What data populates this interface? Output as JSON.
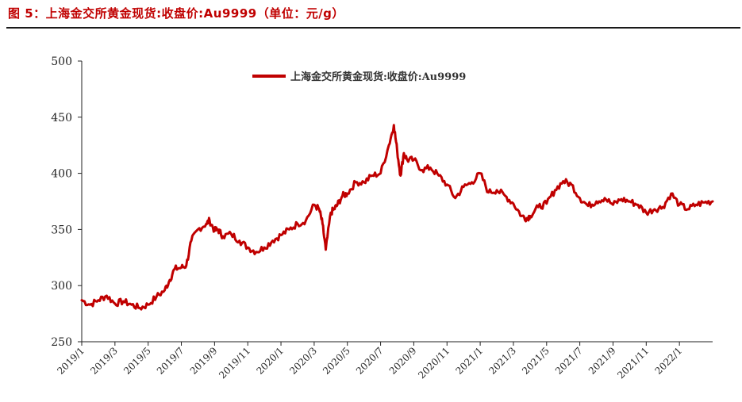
{
  "figure": {
    "title": "图 5：上海金交所黄金现货:收盘价:Au9999（单位：元/g）"
  },
  "colors": {
    "series": "#c00000",
    "axis": "#222222",
    "title": "#c00000"
  },
  "chart_data": {
    "type": "line",
    "title": "图 5：上海金交所黄金现货:收盘价:Au9999（单位：元/g）",
    "xlabel": "",
    "ylabel": "",
    "ylim": [
      250,
      500
    ],
    "yticks": [
      "500",
      "450",
      "400",
      "350",
      "300",
      "250"
    ],
    "grid": false,
    "legend_position": "top-center",
    "x_start": "2019/1",
    "x_end": "2022/3",
    "xticks": [
      "2019/1",
      "2019/3",
      "2019/5",
      "2019/7",
      "2019/9",
      "2019/11",
      "2020/1",
      "2020/3",
      "2020/5",
      "2020/7",
      "2020/9",
      "2020/11",
      "2021/1",
      "2021/3",
      "2021/5",
      "2021/7",
      "2021/9",
      "2021/11",
      "2022/1"
    ],
    "series": [
      {
        "name": "上海金交所黄金现货:收盘价:Au9999",
        "x_month_index": [
          0,
          0.5,
          1,
          1.5,
          2,
          2.5,
          3,
          3.5,
          4,
          4.5,
          5,
          5.3,
          5.6,
          6,
          6.3,
          6.6,
          7,
          7.5,
          7.7,
          8,
          8.2,
          8.5,
          9,
          9.5,
          10,
          10.5,
          11,
          11.5,
          12,
          12.5,
          13,
          13.5,
          14,
          14.3,
          14.5,
          14.7,
          15,
          15.2,
          15.4,
          15.7,
          16,
          16.5,
          17,
          17.5,
          18,
          18.5,
          18.8,
          19,
          19.2,
          19.4,
          19.6,
          20,
          20.5,
          21,
          21.5,
          22,
          22.5,
          23,
          23.5,
          24,
          24.5,
          25,
          25.5,
          26,
          26.5,
          26.8,
          27,
          27.5,
          28,
          28.5,
          29,
          29.5,
          30,
          30.5,
          31,
          31.5,
          32,
          32.5,
          33,
          33.5,
          34,
          34.5,
          35,
          35.5,
          36,
          36.5,
          37,
          37.5,
          38
        ],
        "values": [
          287,
          283,
          287,
          291,
          284,
          286,
          283,
          280,
          283,
          290,
          296,
          305,
          315,
          316,
          318,
          340,
          350,
          355,
          358,
          349,
          350,
          344,
          346,
          340,
          334,
          330,
          334,
          340,
          345,
          350,
          355,
          358,
          372,
          368,
          355,
          332,
          365,
          368,
          372,
          380,
          382,
          392,
          392,
          398,
          400,
          425,
          443,
          420,
          398,
          418,
          412,
          412,
          403,
          405,
          398,
          390,
          378,
          388,
          392,
          400,
          383,
          385,
          380,
          373,
          362,
          360,
          362,
          370,
          373,
          385,
          393,
          390,
          378,
          371,
          375,
          378,
          372,
          377,
          375,
          372,
          365,
          368,
          370,
          382,
          372,
          368,
          372,
          374,
          375
        ]
      }
    ]
  }
}
